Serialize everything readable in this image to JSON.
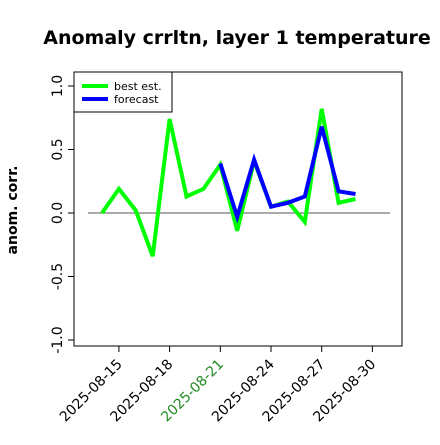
{
  "chart_data": {
    "type": "line",
    "title": "Anomaly crrltn, layer 1 temperature",
    "xlabel": "",
    "ylabel": "anom. corr.",
    "ylim": [
      -1.0,
      1.0
    ],
    "yticks": [
      "-1.0",
      "-0.5",
      "0.0",
      "0.5",
      "1.0"
    ],
    "x": [
      "2025-08-14",
      "2025-08-15",
      "2025-08-16",
      "2025-08-17",
      "2025-08-18",
      "2025-08-19",
      "2025-08-20",
      "2025-08-21",
      "2025-08-22",
      "2025-08-23",
      "2025-08-24",
      "2025-08-25",
      "2025-08-26",
      "2025-08-27",
      "2025-08-28",
      "2025-08-29",
      "2025-08-30"
    ],
    "xticks": [
      "2025-08-15",
      "2025-08-18",
      "2025-08-21",
      "2025-08-24",
      "2025-08-27",
      "2025-08-30"
    ],
    "highlighted_xtick": "2025-08-21",
    "highlight_color": "#228B22",
    "reference_line_y": 0.0,
    "grid": false,
    "legend_position": "top-left",
    "series": [
      {
        "name": "best est.",
        "color": "#00ff00",
        "values": [
          0.0,
          0.19,
          0.02,
          -0.34,
          0.74,
          0.13,
          0.19,
          0.38,
          -0.14,
          0.41,
          0.05,
          0.09,
          -0.07,
          0.82,
          0.08,
          0.11,
          null
        ]
      },
      {
        "name": "forecast",
        "color": "#0000ff",
        "values": [
          null,
          null,
          null,
          null,
          null,
          null,
          null,
          0.39,
          -0.03,
          0.42,
          0.05,
          0.08,
          0.13,
          0.68,
          0.17,
          0.15,
          null
        ]
      }
    ]
  }
}
